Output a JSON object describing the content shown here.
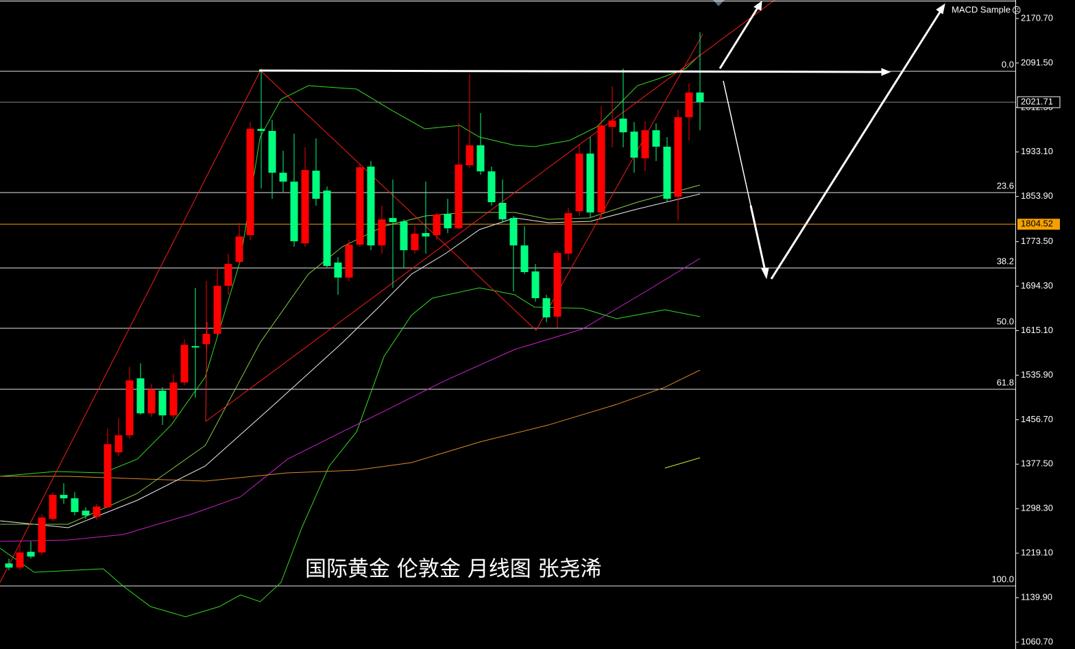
{
  "chart_data": {
    "type": "candlestick",
    "indicator": "MACD Sample",
    "indicator_icon": "☹",
    "watermark": "国际黄金  伦敦金 月线图  张尧浠",
    "up_color": "#ff0000",
    "down_color": "#00ff7f",
    "open": [
      1200.8,
      1193.4,
      1221.5,
      1220.3,
      1280.1,
      1322.8,
      1316.7,
      1294.7,
      1283.7,
      1300.8,
      1398.4,
      1428.9,
      1530.2,
      1467.9,
      1508.2,
      1464.3,
      1522.8,
      1587.5,
      1591.2,
      1609.5,
      1694.9,
      1737.6,
      1785.1,
      1974.2,
      1970.6,
      1896.2,
      1880.3,
      1770.5,
      1899.8,
      1864.4,
      1736.3,
      1709.5,
      1768.1,
      1907.1,
      1766.8,
      1815.6,
      1809.5,
      1758.3,
      1788.8,
      1785.1,
      1823.0,
      1797.3,
      1909.6,
      1945.0,
      1898.6,
      1842.5,
      1815.6,
      1766.8,
      1720.5,
      1672.9,
      1640.0,
      1752.2,
      1827.8,
      1930.3,
      1825.4,
      1977.9,
      1992.5,
      1969.4,
      1921.8,
      1971.8,
      1942.5,
      1853.5,
      1995.0,
      2038.9
    ],
    "high": [
      1209.3,
      1233.7,
      1239.8,
      1288.6,
      1327.6,
      1343.5,
      1327.6,
      1300.8,
      1306.9,
      1441.1,
      1459.4,
      1550.9,
      1557.0,
      1520.4,
      1514.3,
      1538.7,
      1599.7,
      1691.2,
      1703.4,
      1727.8,
      1752.2,
      1807.1,
      1986.4,
      2081.6,
      1990.1,
      1935.2,
      1965.7,
      1941.3,
      1957.2,
      1871.8,
      1746.1,
      1776.6,
      1910.8,
      1916.9,
      1837.6,
      1884.0,
      1813.2,
      1801.0,
      1880.3,
      1825.4,
      1849.8,
      1984.0,
      2071.8,
      2002.3,
      1907.1,
      1884.0,
      1819.3,
      1801.0,
      1733.9,
      1679.0,
      1758.3,
      1833.9,
      1947.4,
      1959.6,
      2014.5,
      2049.9,
      2081.6,
      1986.4,
      1987.7,
      1984.0,
      1959.6,
      2008.4,
      2054.8,
      2146.3
    ],
    "low": [
      1188.6,
      1188.6,
      1209.3,
      1215.4,
      1276.4,
      1306.9,
      1286.2,
      1280.1,
      1278.8,
      1298.4,
      1392.3,
      1422.8,
      1465.5,
      1461.8,
      1447.2,
      1459.4,
      1518.0,
      1496.0,
      1581.4,
      1605.8,
      1679.0,
      1733.9,
      1776.6,
      1868.1,
      1849.8,
      1862.0,
      1764.4,
      1764.4,
      1837.6,
      1727.8,
      1679.0,
      1703.4,
      1764.4,
      1758.3,
      1752.2,
      1691.2,
      1727.8,
      1752.2,
      1752.2,
      1776.6,
      1788.8,
      1794.9,
      1904.7,
      1892.5,
      1837.6,
      1807.1,
      1685.1,
      1715.6,
      1666.8,
      1630.2,
      1620.4,
      1740.0,
      1819.3,
      1815.6,
      1813.2,
      1941.3,
      1941.3,
      1896.2,
      1898.6,
      1916.9,
      1843.7,
      1810.8,
      1953.5,
      1971.8
    ],
    "close": [
      1193.4,
      1220.3,
      1213.0,
      1282.5,
      1322.8,
      1316.7,
      1292.3,
      1286.2,
      1302.0,
      1413.0,
      1428.9,
      1526.5,
      1467.9,
      1510.6,
      1464.3,
      1522.8,
      1589.9,
      1585.1,
      1609.5,
      1694.9,
      1733.9,
      1782.7,
      1974.2,
      1970.6,
      1896.2,
      1880.3,
      1774.2,
      1901.0,
      1849.8,
      1730.2,
      1709.5,
      1768.1,
      1905.9,
      1766.8,
      1813.2,
      1808.3,
      1758.3,
      1787.6,
      1782.7,
      1821.7,
      1797.3,
      1910.8,
      1945.0,
      1898.6,
      1843.7,
      1813.2,
      1766.8,
      1719.3,
      1672.9,
      1638.7,
      1753.4,
      1824.2,
      1930.3,
      1825.4,
      1980.3,
      1988.9,
      1968.1,
      1923.0,
      1971.8,
      1942.5,
      1849.8,
      1995.0,
      2038.9,
      2021.71
    ],
    "lines": [
      {
        "color": "#33dd22",
        "x": [
          -0.8,
          4.2,
          8.6,
          11.7,
          14.8,
          17.9,
          21.1,
          22.9,
          24.8,
          27.3,
          31.7,
          34.8,
          37.9,
          41.1,
          42.9,
          46.1,
          47.9,
          51.1,
          53.6,
          57.3,
          59.2,
          61.7,
          63
        ],
        "values": [
          1355.9,
          1364.4,
          1362.0,
          1386.4,
          1447.3,
          1532.7,
          1740.1,
          1959.6,
          2026.7,
          2051.1,
          2045.0,
          2008.4,
          1974.3,
          1980.4,
          1959.6,
          1945.0,
          1942.6,
          1953.6,
          1977.9,
          2051.1,
          2063.3,
          2081.6,
          2106.0
        ]
      },
      {
        "color": "#33dd22",
        "x": [
          -0.8,
          2.3,
          8.6,
          10.4,
          12.9,
          16.1,
          19.2,
          21.1,
          22.9,
          24.8,
          26.7,
          29.2,
          31.7,
          34.2,
          36.7,
          38.6,
          42.9,
          46.1,
          47.9,
          52.3,
          55.4,
          59.8,
          63
        ],
        "values": [
          1227.8,
          1185.1,
          1191.2,
          1160.7,
          1124.1,
          1105.8,
          1124.1,
          1144.8,
          1132.7,
          1166.8,
          1264.4,
          1374.2,
          1435.2,
          1569.3,
          1642.5,
          1673.0,
          1691.3,
          1679.1,
          1657.1,
          1654.7,
          1636.4,
          1652.3,
          1640.1
        ]
      },
      {
        "color": "#cc22cc",
        "x": [
          -0.8,
          5.4,
          10.4,
          16.7,
          21.1,
          25.4,
          30.4,
          34.2,
          39.8,
          46.1,
          52.3,
          58.6,
          63
        ],
        "values": [
          1240.0,
          1242.4,
          1252.2,
          1288.8,
          1319.3,
          1386.4,
          1435.2,
          1471.7,
          1526.6,
          1581.5,
          1618.1,
          1691.3,
          1743.7
        ]
      },
      {
        "color": "#e08a2a",
        "x": [
          -0.8,
          5.4,
          17.9,
          25.4,
          31.7,
          36.7,
          42.9,
          49.2,
          55.4,
          59.8,
          63
        ],
        "values": [
          1355.9,
          1355.9,
          1347.3,
          1362.0,
          1366.8,
          1380.3,
          1416.9,
          1447.3,
          1483.9,
          1514.4,
          1544.9
        ]
      },
      {
        "color": "#eeeeee",
        "x": [
          -0.8,
          5.4,
          11.7,
          17.9,
          24.2,
          30.4,
          33.6,
          36.7,
          39.8,
          42.9,
          46.1,
          49.2,
          53,
          57.3,
          63
        ],
        "values": [
          1276.6,
          1264.4,
          1313.2,
          1374.2,
          1483.9,
          1593.7,
          1654.7,
          1715.7,
          1752.3,
          1795.0,
          1815.7,
          1807.2,
          1809.6,
          1831.6,
          1858.4
        ]
      },
      {
        "color": "#88cc44",
        "x": [
          -0.8,
          5.4,
          11.7,
          17.9,
          22.9,
          27.3,
          30.4,
          34.2,
          38,
          41.7,
          46.1,
          49.2,
          52.9,
          57.3,
          63
        ],
        "values": [
          1270.5,
          1270.5,
          1325.4,
          1410.8,
          1593.7,
          1715.7,
          1764.5,
          1801.1,
          1819.4,
          1825.5,
          1825.5,
          1813.3,
          1815.7,
          1843.8,
          1874.3
        ]
      },
      {
        "color": "#dddd33",
        "x": [
          59.8,
          63
        ],
        "values": [
          1370.5,
          1388.8
        ]
      }
    ],
    "fib_levels": [
      {
        "value": 2076.8,
        "label": "0.0"
      },
      {
        "value": 1860.8,
        "label": "23.6"
      },
      {
        "value": 1726.7,
        "label": "38.2"
      },
      {
        "value": 1619.3,
        "label": "50.0"
      },
      {
        "value": 1510.8,
        "label": "61.8"
      },
      {
        "value": 1160.7,
        "label": "100.0"
      }
    ],
    "current_price": 2021.71,
    "marked_price": 1804.52,
    "marked_color": "#f5a000",
    "ylim": [
      1048.5,
      2203.6
    ],
    "yticks": [
      {
        "value": 2170.7,
        "label": "2170.70"
      },
      {
        "value": 2091.5,
        "label": "2091.50"
      },
      {
        "value": 2012.3,
        "label": "2012.30"
      },
      {
        "value": 1933.1,
        "label": "1933.10"
      },
      {
        "value": 1853.9,
        "label": "1853.90"
      },
      {
        "value": 1773.5,
        "label": "1773.50"
      },
      {
        "value": 1694.3,
        "label": "1694.30"
      },
      {
        "value": 1615.1,
        "label": "1615.10"
      },
      {
        "value": 1535.9,
        "label": "1535.90"
      },
      {
        "value": 1456.7,
        "label": "1456.70"
      },
      {
        "value": 1377.5,
        "label": "1377.50"
      },
      {
        "value": 1298.3,
        "label": "1298.30"
      },
      {
        "value": 1219.1,
        "label": "1219.10"
      },
      {
        "value": 1139.9,
        "label": "1139.90"
      },
      {
        "value": 1060.7,
        "label": "1060.70"
      }
    ]
  }
}
